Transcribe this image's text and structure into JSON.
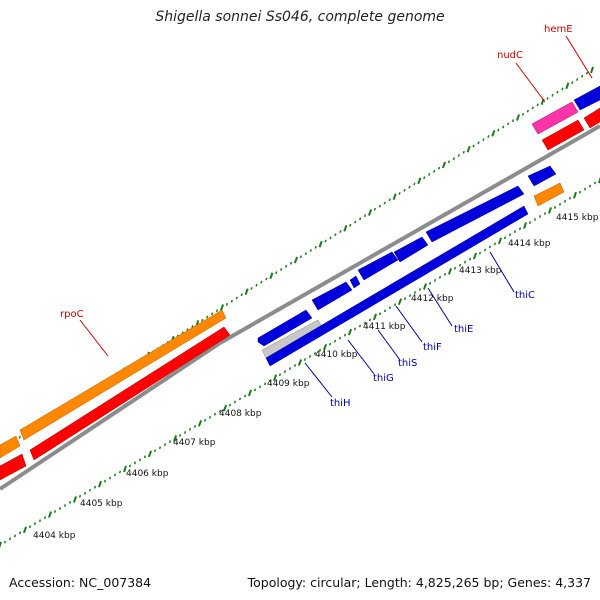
{
  "title": "Shigella sonnei Ss046, complete genome",
  "footer": {
    "accession_label": "Accession:",
    "accession": "NC_007384",
    "topology_text": "Topology: circular; Length: 4,825,265 bp; Genes: 4,337"
  },
  "colors": {
    "backbone": "#8c8c8c",
    "tick": "#1a7a1a",
    "label_blue": "#000099",
    "label_red": "#cc0000",
    "gene_blue": "#0000dd",
    "gene_red": "#ff0000",
    "gene_orange": "#ff8800",
    "gene_pink": "#ff33aa",
    "gene_gray": "#c8c8c8"
  },
  "kbp_labels": [
    "4404 kbp",
    "4405 kbp",
    "4406 kbp",
    "4407 kbp",
    "4408 kbp",
    "4409 kbp",
    "4410 kbp",
    "4411 kbp",
    "4412 kbp",
    "4413 kbp",
    "4414 kbp",
    "4415 kbp"
  ],
  "gene_labels": [
    "rpoC",
    "nudC",
    "hemE",
    "thiH",
    "thiG",
    "thiS",
    "thiF",
    "thiE",
    "thiC"
  ]
}
